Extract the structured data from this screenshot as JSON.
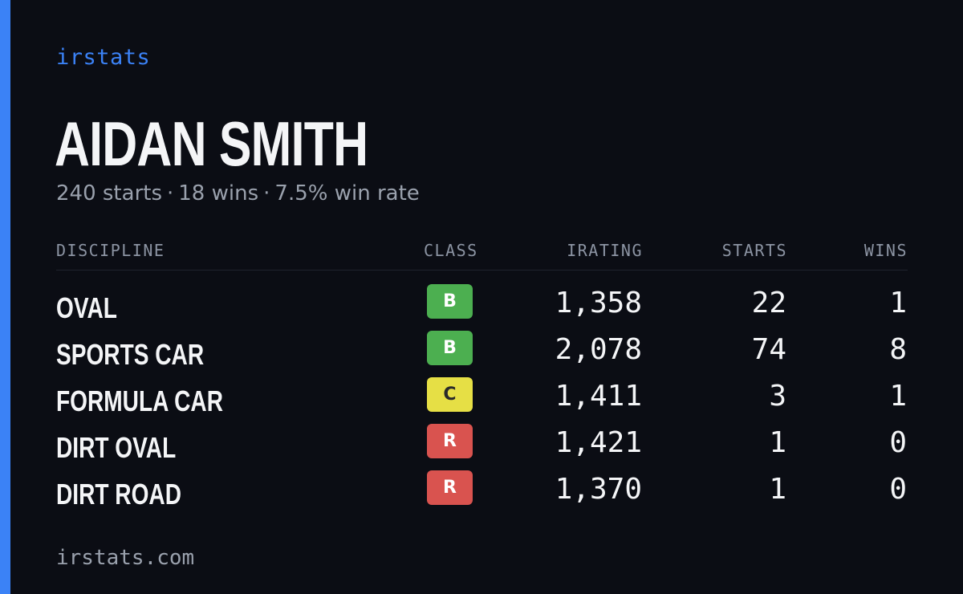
{
  "brand": "irstats",
  "driver": {
    "name": "AIDAN SMITH",
    "starts_text": "240 starts",
    "separator": "·",
    "wins_text": "18 wins",
    "win_rate_text": "7.5% win rate"
  },
  "table": {
    "headers": {
      "discipline": "DISCIPLINE",
      "class": "CLASS",
      "irating": "IRATING",
      "starts": "STARTS",
      "wins": "WINS"
    },
    "rows": [
      {
        "discipline": "OVAL",
        "class": "B",
        "irating": "1,358",
        "starts": "22",
        "wins": "1"
      },
      {
        "discipline": "SPORTS CAR",
        "class": "B",
        "irating": "2,078",
        "starts": "74",
        "wins": "8"
      },
      {
        "discipline": "FORMULA CAR",
        "class": "C",
        "irating": "1,411",
        "starts": "3",
        "wins": "1"
      },
      {
        "discipline": "DIRT OVAL",
        "class": "R",
        "irating": "1,421",
        "starts": "1",
        "wins": "0"
      },
      {
        "discipline": "DIRT ROAD",
        "class": "R",
        "irating": "1,370",
        "starts": "1",
        "wins": "0"
      }
    ]
  },
  "class_colors": {
    "B": "#4caf50",
    "C": "#e6df45",
    "R": "#d9534f"
  },
  "colors": {
    "accent": "#3b82f6",
    "background": "#0b0d14"
  },
  "footer": {
    "url": "irstats.com"
  }
}
